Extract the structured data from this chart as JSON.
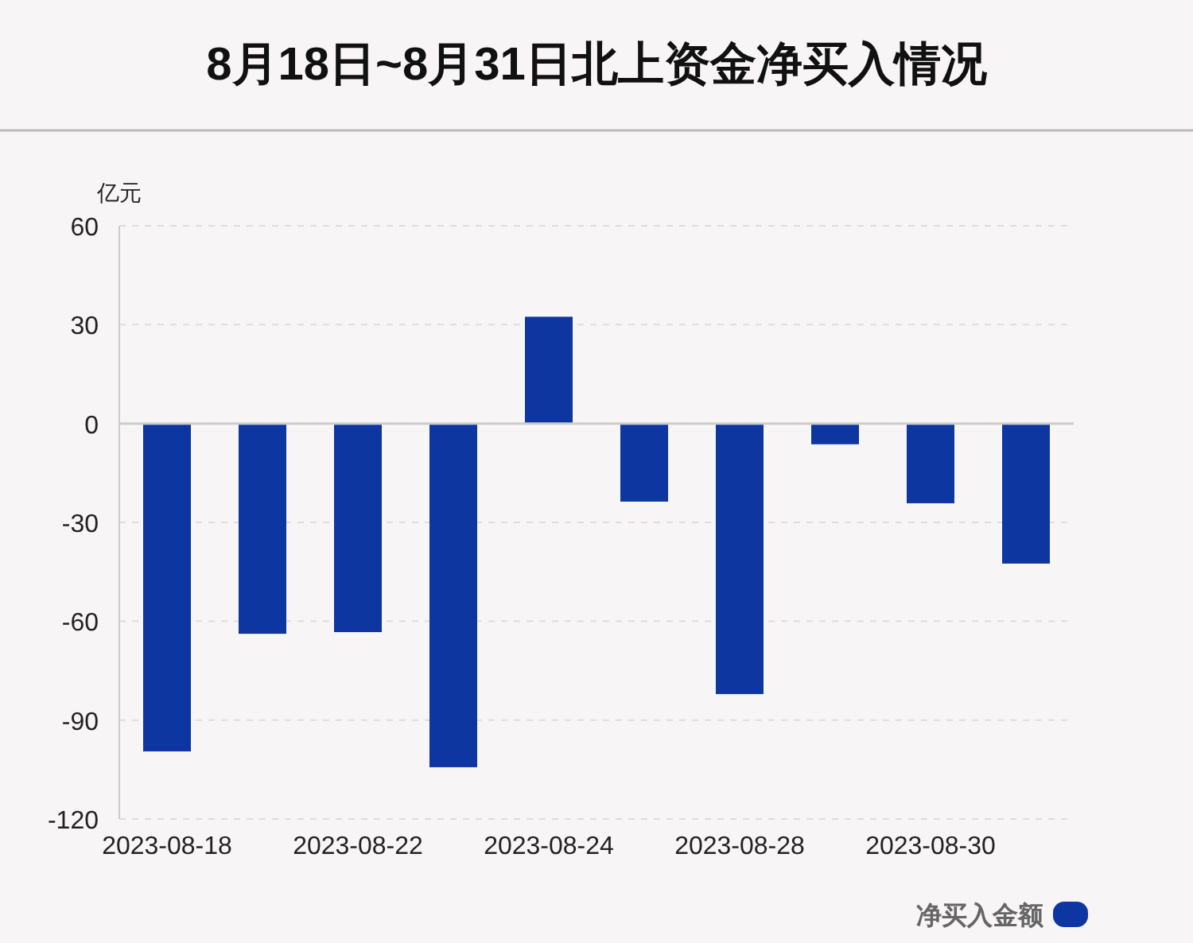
{
  "chart_data": {
    "type": "bar",
    "title": "8月18日~8月31日北上资金净买入情况",
    "ylabel": "亿元",
    "categories": [
      "2023-08-18",
      null,
      "2023-08-22",
      null,
      "2023-08-24",
      null,
      "2023-08-28",
      null,
      "2023-08-30",
      null
    ],
    "series": [
      {
        "name": "净买入金额",
        "color": "#0d36a0",
        "values": [
          -99.5,
          -63.8,
          -63.3,
          -104.3,
          32.4,
          -23.7,
          -82.1,
          -6.3,
          -24.2,
          -42.5
        ]
      }
    ],
    "ylim": [
      -120,
      60
    ],
    "yticks": [
      -120,
      -90,
      -60,
      -30,
      0,
      30,
      60
    ],
    "grid": "y",
    "legend": "bottom right"
  }
}
